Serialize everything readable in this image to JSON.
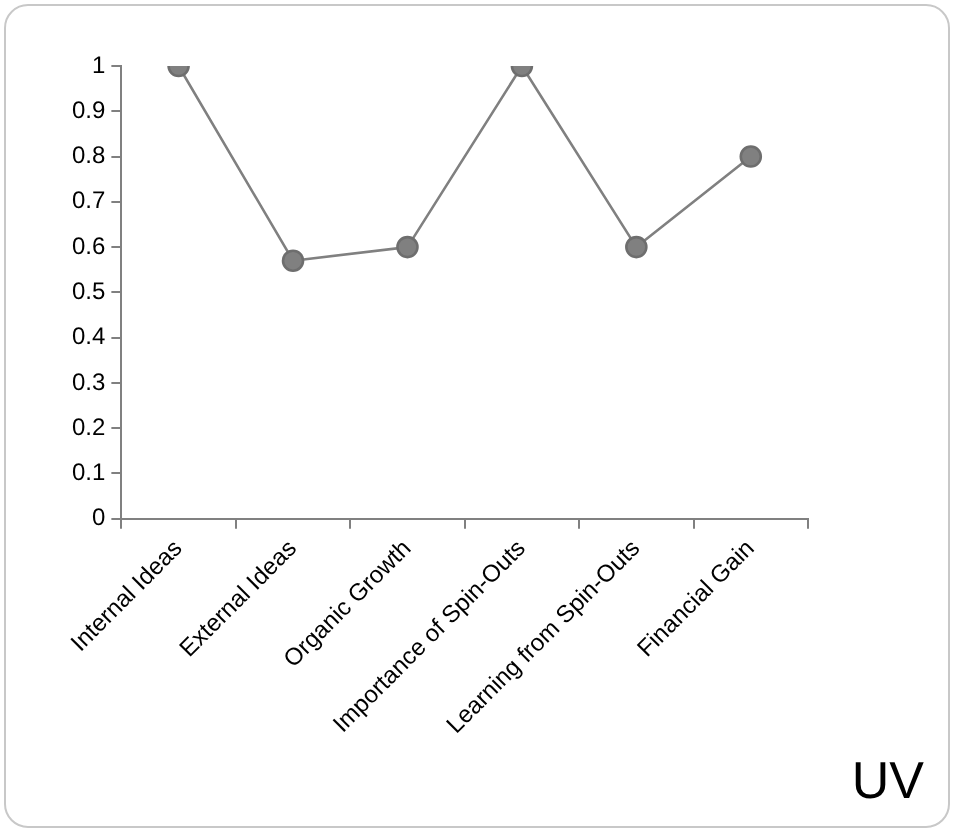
{
  "chart_data": {
    "type": "line",
    "categories": [
      "Internal Ideas",
      "External Ideas",
      "Organic Growth",
      "Importance of Spin-Outs",
      "Learning from Spin-Outs",
      "Financial Gain"
    ],
    "series": [
      {
        "color": "#808080",
        "values": [
          1,
          0.57,
          0.6,
          1,
          0.6,
          0.8
        ]
      }
    ],
    "ylim": [
      0,
      1
    ],
    "yticks": [
      0,
      0.1,
      0.2,
      0.3,
      0.4,
      0.5,
      0.6,
      0.7,
      0.8,
      0.9,
      1
    ],
    "grid": false,
    "legend": false,
    "marker": "circle",
    "line_style": "solid",
    "annotations": [
      "UV"
    ]
  }
}
